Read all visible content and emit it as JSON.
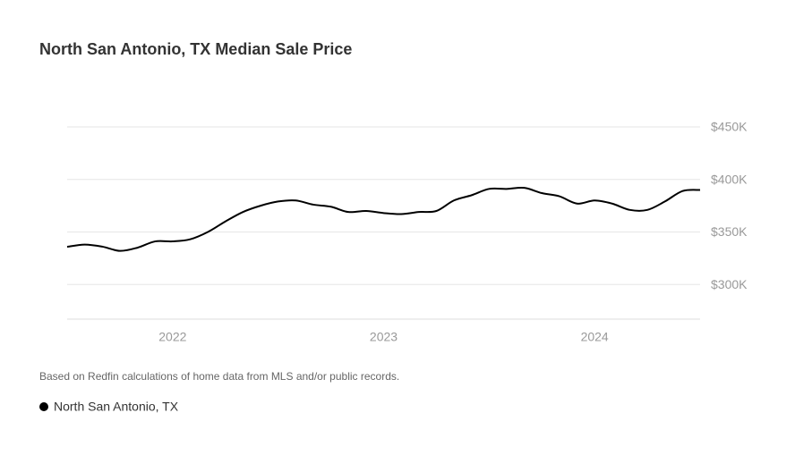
{
  "chart_data": {
    "type": "line",
    "title": "North San Antonio, TX Median Sale Price",
    "note": "Based on Redfin calculations of home data from MLS and/or public records.",
    "x": [
      2021.5,
      2021.583,
      2021.667,
      2021.75,
      2021.833,
      2021.917,
      2022,
      2022.083,
      2022.167,
      2022.25,
      2022.333,
      2022.417,
      2022.5,
      2022.583,
      2022.667,
      2022.75,
      2022.833,
      2022.917,
      2023,
      2023.083,
      2023.167,
      2023.25,
      2023.333,
      2023.417,
      2023.5,
      2023.583,
      2023.667,
      2023.75,
      2023.833,
      2023.917,
      2024,
      2024.083,
      2024.167,
      2024.25,
      2024.333,
      2024.417,
      2024.5
    ],
    "series": [
      {
        "name": "North San Antonio, TX",
        "color": "#000000",
        "values": [
          335800,
          338000,
          336000,
          332000,
          335000,
          341000,
          341000,
          343000,
          350000,
          360000,
          369000,
          375000,
          379000,
          380000,
          376000,
          374000,
          369000,
          370000,
          368000,
          367000,
          369000,
          370000,
          380000,
          385000,
          391000,
          391000,
          392000,
          387000,
          384000,
          377000,
          380000,
          377000,
          371000,
          371000,
          379000,
          389000,
          390000
        ]
      }
    ],
    "xlim": [
      2021.5,
      2024.5
    ],
    "xticks": [
      2022,
      2023,
      2024
    ],
    "ylim": [
      267000,
      450000
    ],
    "yticks": [
      {
        "value": 300000,
        "label": "$300K"
      },
      {
        "value": 350000,
        "label": "$350K"
      },
      {
        "value": 400000,
        "label": "$400K"
      },
      {
        "value": 450000,
        "label": "$450K"
      }
    ],
    "grid": true
  }
}
